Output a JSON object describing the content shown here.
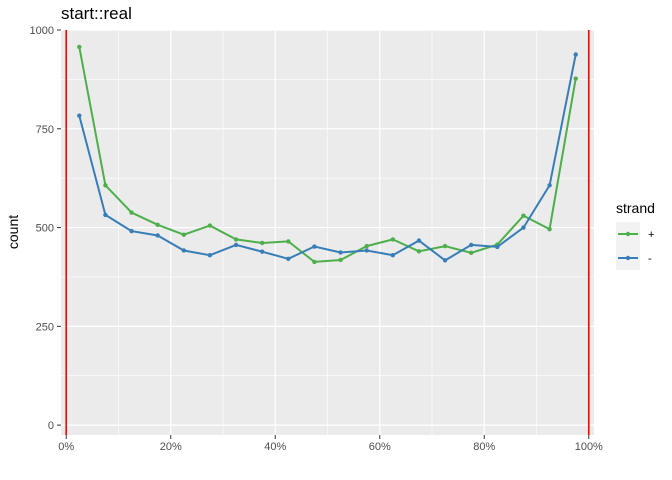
{
  "chart_data": {
    "type": "line",
    "title": "start::real",
    "xlabel": "",
    "ylabel": "count",
    "xlim": [
      -0.01,
      1.01
    ],
    "ylim": [
      -25,
      1000
    ],
    "x_ticks": [
      0,
      0.2,
      0.4,
      0.6,
      0.8,
      1.0
    ],
    "x_tick_labels": [
      "0%",
      "20%",
      "40%",
      "60%",
      "80%",
      "100%"
    ],
    "y_ticks": [
      0,
      250,
      500,
      750,
      1000
    ],
    "y_tick_labels": [
      "0",
      "250",
      "500",
      "750",
      "1000"
    ],
    "vlines": [
      0,
      1
    ],
    "vline_color": "#ff0000",
    "grid": true,
    "legend": {
      "title": "strand",
      "position": "right"
    },
    "x": [
      0.025,
      0.075,
      0.125,
      0.175,
      0.225,
      0.275,
      0.325,
      0.375,
      0.425,
      0.475,
      0.525,
      0.575,
      0.625,
      0.675,
      0.725,
      0.775,
      0.825,
      0.875,
      0.925,
      0.975
    ],
    "series": [
      {
        "name": "+",
        "color": "#4daf4a",
        "values": [
          957,
          607,
          538,
          507,
          482,
          505,
          470,
          461,
          465,
          413,
          418,
          453,
          470,
          440,
          453,
          436,
          457,
          530,
          496,
          877
        ]
      },
      {
        "name": "-",
        "color": "#377eb8",
        "values": [
          783,
          532,
          491,
          480,
          442,
          430,
          456,
          439,
          421,
          452,
          437,
          442,
          430,
          467,
          417,
          456,
          451,
          500,
          607,
          938
        ]
      }
    ]
  }
}
